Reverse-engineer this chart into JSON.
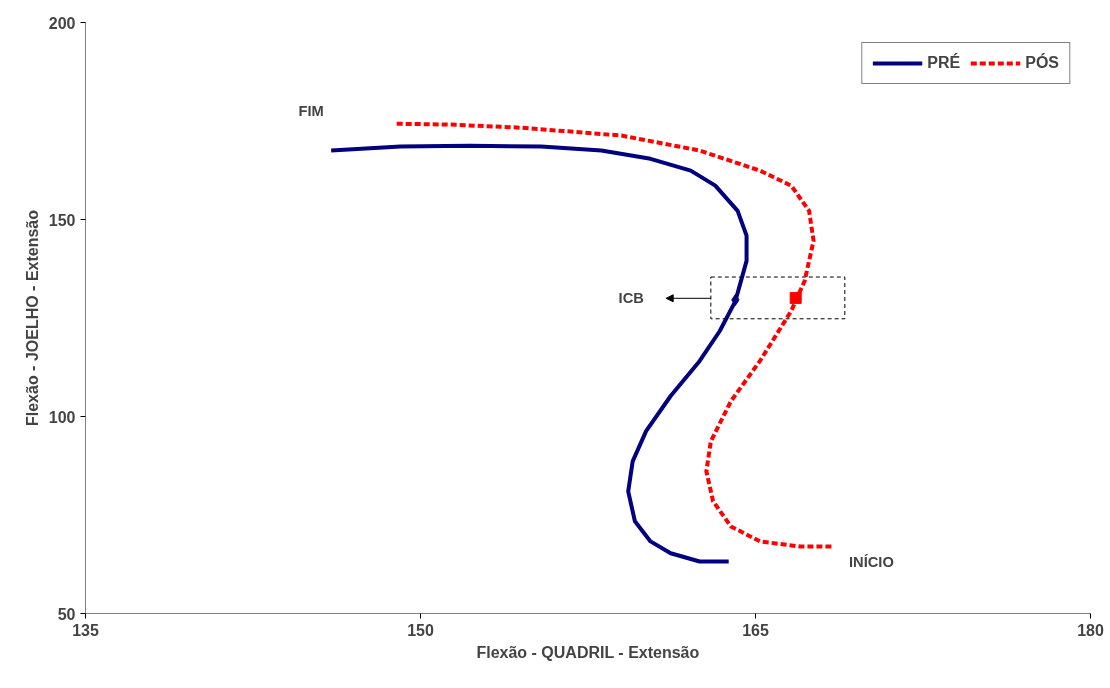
{
  "chart_data": {
    "type": "line",
    "xlabel": "Flexão - QUADRIL - Extensão",
    "ylabel": "Flexão - JOELHO - Extensão",
    "xlim": [
      135,
      180
    ],
    "xticks": [
      135,
      150,
      165,
      180
    ],
    "ylim": [
      50,
      200
    ],
    "yticks": [
      50,
      100,
      150,
      200
    ],
    "grid": false,
    "legend": "top right",
    "marker": "none",
    "series": [
      {
        "name": "PRÉ",
        "color": "#000080",
        "line_style": "solid",
        "x": [
          163.8,
          162.5,
          161.2,
          160.3,
          159.6,
          159.3,
          159.5,
          160.1,
          161.2,
          162.5,
          163.4,
          164.1,
          164.6,
          164.6,
          164.2,
          163.2,
          162.1,
          160.3,
          158.1,
          155.4,
          152.2,
          149.1,
          146.0
        ],
        "values": [
          63.2,
          63.2,
          65.3,
          68.3,
          73.4,
          81.0,
          88.6,
          96.3,
          105.2,
          114.1,
          121.7,
          129.3,
          139.5,
          145.9,
          152.2,
          158.6,
          162.4,
          165.4,
          167.5,
          168.5,
          168.7,
          168.5,
          167.5
        ]
      },
      {
        "name": "PÓS",
        "color": "#ff0000",
        "line_style": "dashed",
        "x": [
          168.4,
          167.0,
          165.2,
          163.9,
          163.1,
          162.8,
          163.0,
          163.9,
          165.2,
          166.6,
          167.2,
          167.6,
          167.4,
          166.6,
          165.2,
          162.5,
          159.0,
          154.5,
          151.3,
          148.9
        ],
        "values": [
          67.0,
          67.0,
          68.3,
          72.1,
          78.5,
          86.1,
          93.7,
          103.9,
          114.1,
          126.8,
          134.4,
          144.6,
          152.2,
          158.6,
          162.4,
          167.5,
          171.3,
          173.3,
          174.1,
          174.3
        ]
      },
      {
        "type": "scatter",
        "marker": "diamond",
        "color": "#000080",
        "x": [
          164.1
        ],
        "values": [
          129.6
        ]
      },
      {
        "type": "scatter",
        "marker": "square",
        "color": "#ff0000",
        "x": [
          166.8
        ],
        "values": [
          130.1
        ]
      }
    ],
    "annotations": [
      {
        "text": "FIM",
        "x": 146.0,
        "y": 167.5
      },
      "ICB",
      {
        "text": "INÍCIO",
        "x": 168.4,
        "y": 67.0
      }
    ]
  }
}
